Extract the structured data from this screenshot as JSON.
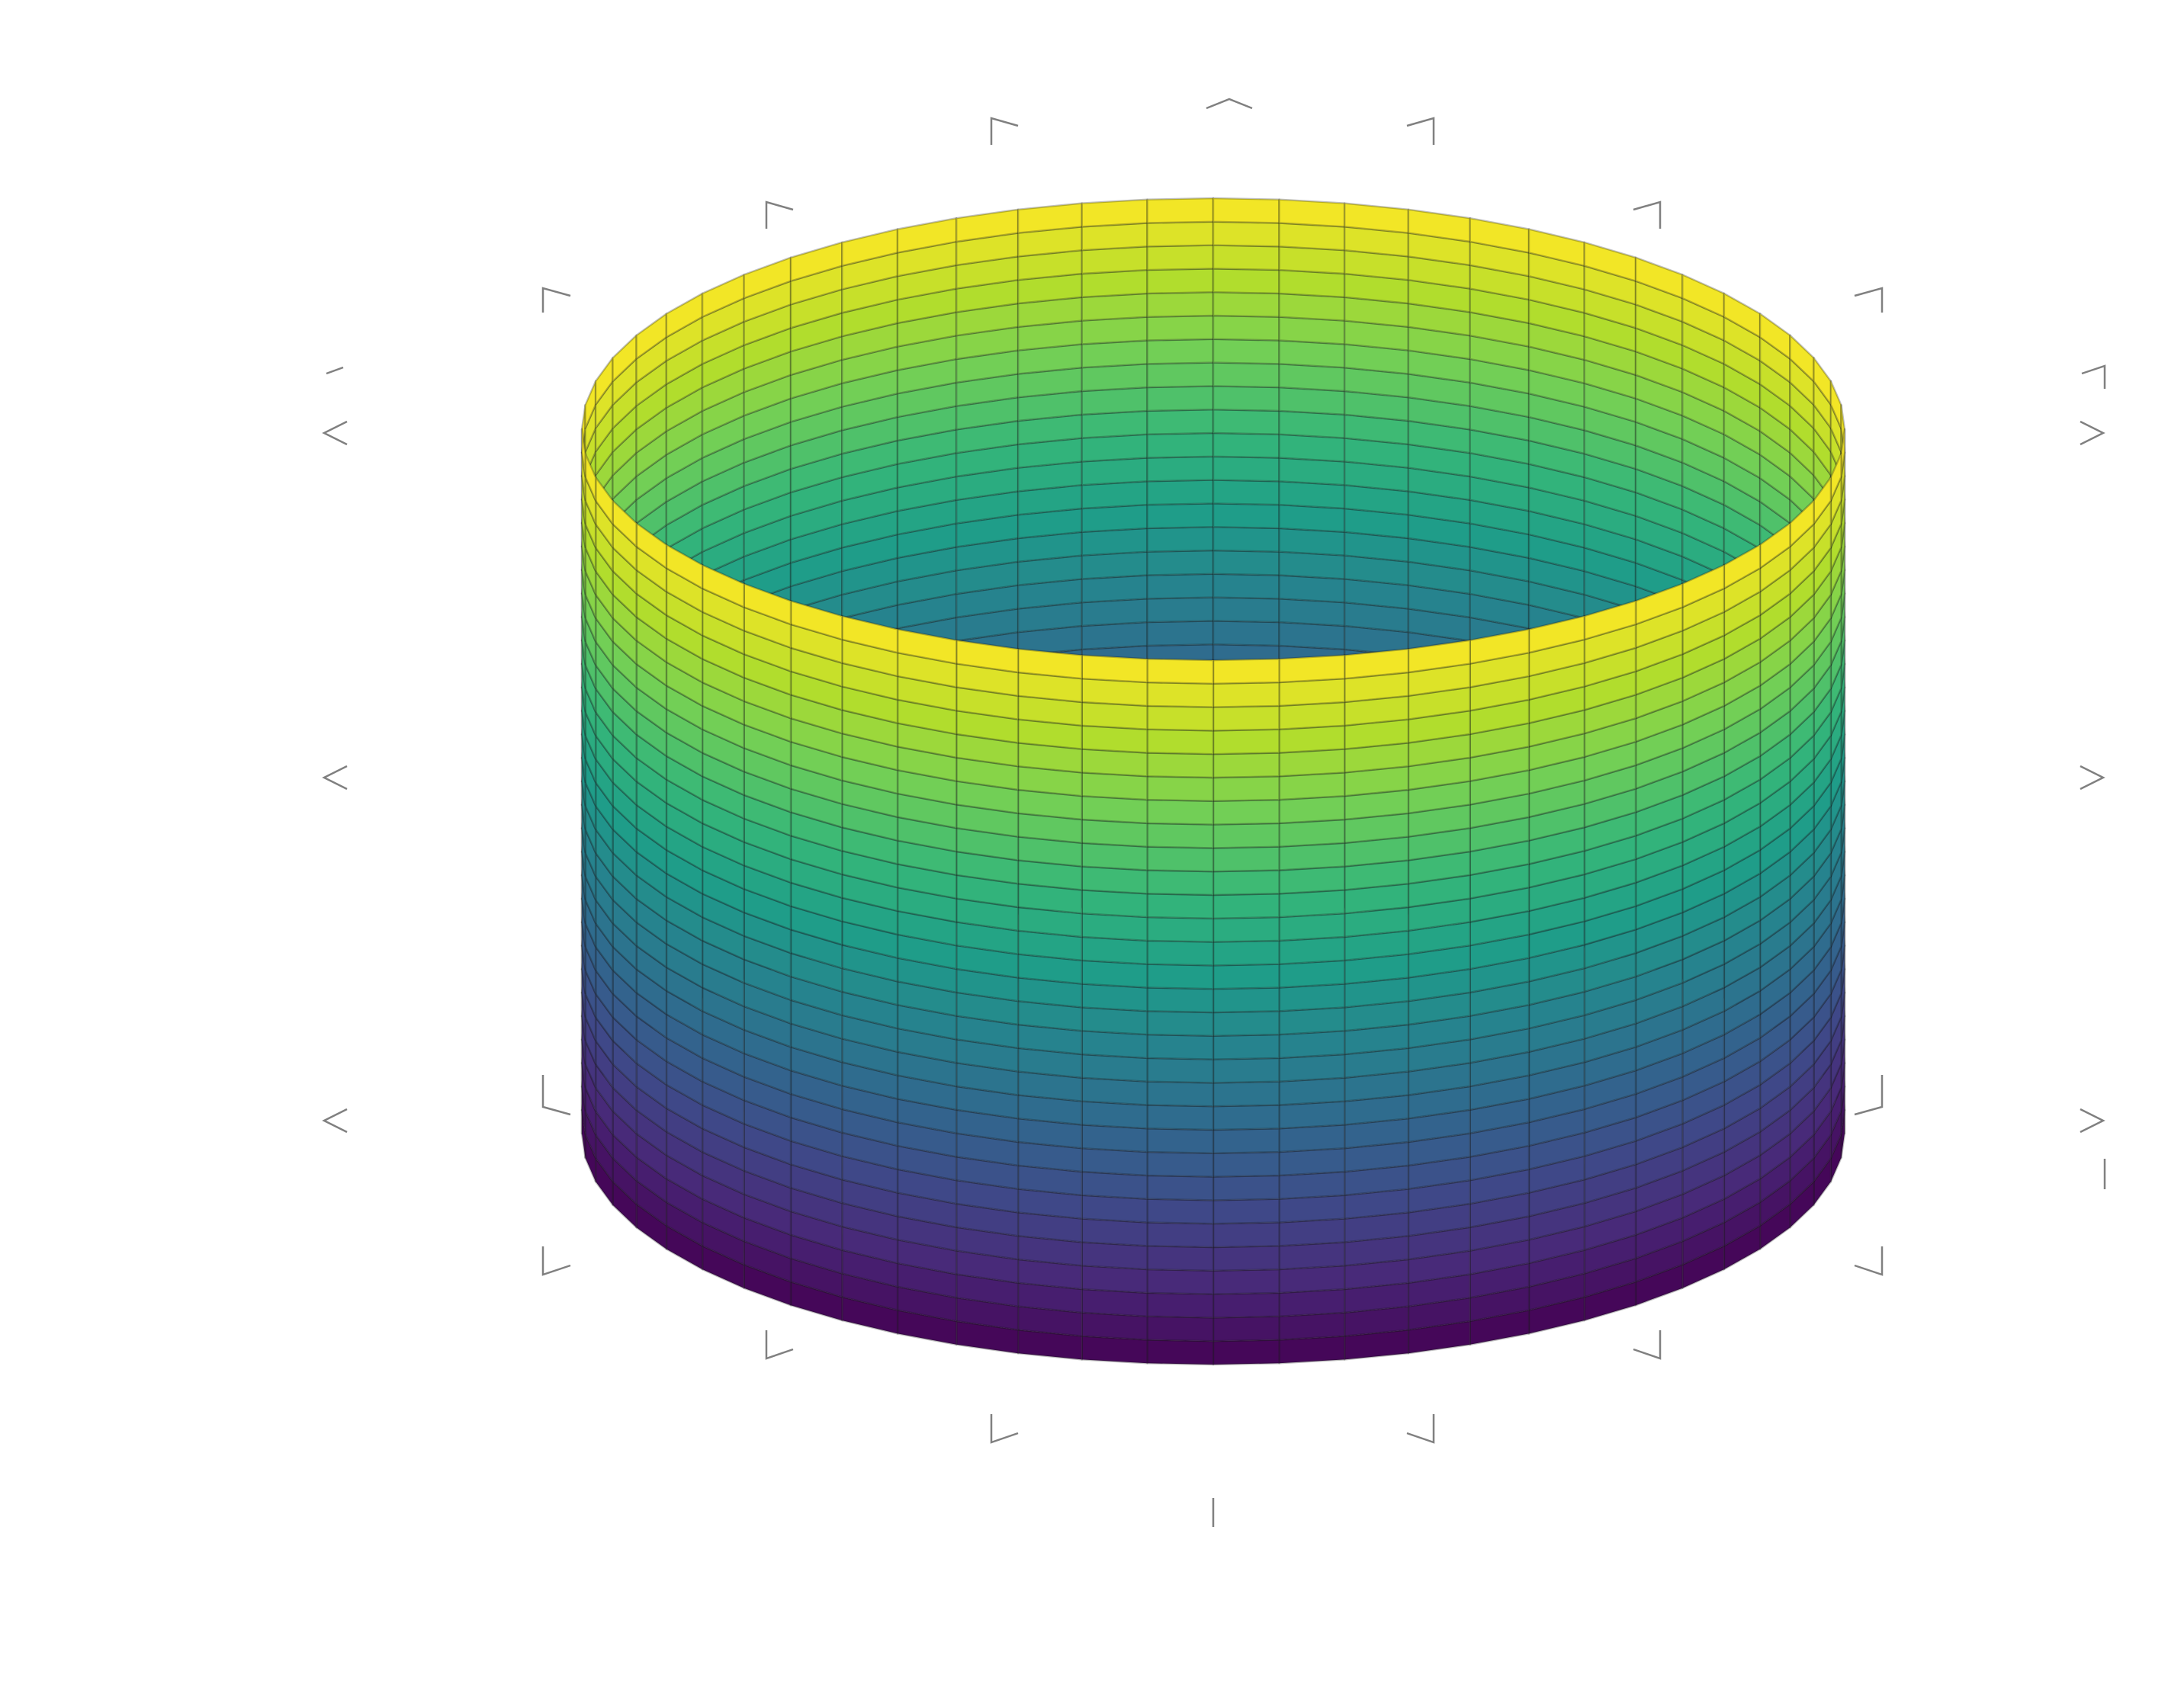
{
  "chart_data": {
    "type": "surface",
    "surface": "cylinder",
    "radius": 1,
    "z_range": [
      0,
      1
    ],
    "theta_segments": 60,
    "z_segments": 30,
    "colormap": "viridis",
    "color_by": "z",
    "edges": true,
    "axes_box": false,
    "grid": false,
    "tick_labels": false,
    "title": "",
    "xlabel": "",
    "ylabel": "",
    "zlabel": ""
  },
  "colors": {
    "background": "#ffffff",
    "mesh_edges": "#1a1a1a",
    "tick_marks": "#808080",
    "viridis": [
      "#440154",
      "#482878",
      "#3e4a89",
      "#31688e",
      "#26828e",
      "#1f9e89",
      "#35b779",
      "#6ece58",
      "#b5de2b",
      "#fde725"
    ]
  }
}
